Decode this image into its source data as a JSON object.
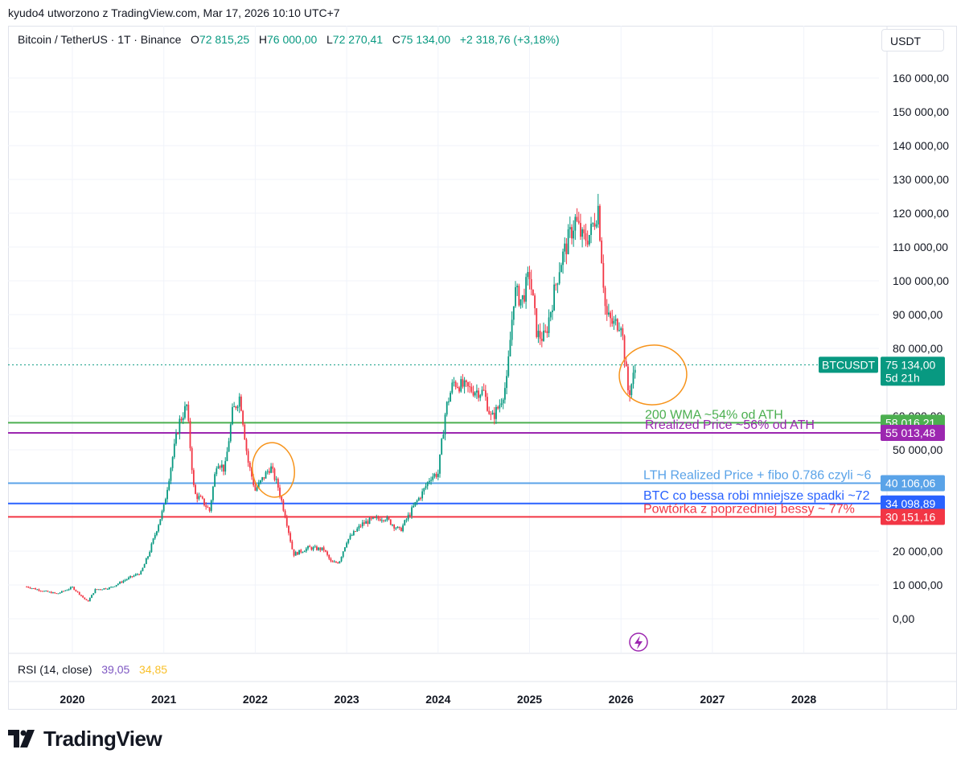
{
  "header": {
    "text": "kyudo4 utworzono z TradingView.com, Mar 17, 2026 10:10 UTC+7"
  },
  "symbol": {
    "name": "Bitcoin / TetherUS · 1T · Binance",
    "o_label": "O",
    "o_value": "72 815,25",
    "h_label": "H",
    "h_value": "76 000,00",
    "l_label": "L",
    "l_value": "72 270,41",
    "c_label": "C",
    "c_value": "75 134,00",
    "change": "+2 318,76 (+3,18%)"
  },
  "currency_button": "USDT",
  "rsi": {
    "label": "RSI (14, close)",
    "value1": "39,05",
    "value2": "34,85"
  },
  "footer": {
    "brand": "TradingView"
  },
  "colors": {
    "up": "#089981",
    "down": "#f23645",
    "annotation": "#f7931a"
  },
  "chart_data": {
    "type": "candlestick",
    "symbol": "BTCUSDT",
    "interval": "1 week",
    "x_years": [
      "2020",
      "2021",
      "2022",
      "2023",
      "2024",
      "2025",
      "2026",
      "2027",
      "2028"
    ],
    "y_ticks": [
      {
        "value": 0,
        "label": "0,00"
      },
      {
        "value": 10000,
        "label": "10 000,00"
      },
      {
        "value": 20000,
        "label": "20 000,00"
      },
      {
        "value": 50000,
        "label": "50 000,00"
      },
      {
        "value": 60000,
        "label": "60 000,00"
      },
      {
        "value": 80000,
        "label": "80 000,00"
      },
      {
        "value": 90000,
        "label": "90 000,00"
      },
      {
        "value": 100000,
        "label": "100 000,00"
      },
      {
        "value": 110000,
        "label": "110 000,00"
      },
      {
        "value": 120000,
        "label": "120 000,00"
      },
      {
        "value": 130000,
        "label": "130 000,00"
      },
      {
        "value": 140000,
        "label": "140 000,00"
      },
      {
        "value": 150000,
        "label": "150 000,00"
      },
      {
        "value": 160000,
        "label": "160 000,00"
      }
    ],
    "ylim": [
      0,
      165000
    ],
    "price_series": [
      [
        "2019-07",
        9500
      ],
      [
        "2019-09",
        8300
      ],
      [
        "2019-11",
        7400
      ],
      [
        "2020-01",
        9300
      ],
      [
        "2020-03",
        5000
      ],
      [
        "2020-04",
        8600
      ],
      [
        "2020-06",
        9200
      ],
      [
        "2020-08",
        11600
      ],
      [
        "2020-10",
        13700
      ],
      [
        "2020-11",
        19000
      ],
      [
        "2021-01",
        33000
      ],
      [
        "2021-02",
        46000
      ],
      [
        "2021-03",
        58000
      ],
      [
        "2021-04",
        63000
      ],
      [
        "2021-05",
        37000
      ],
      [
        "2021-06",
        35000
      ],
      [
        "2021-07",
        32000
      ],
      [
        "2021-08",
        47000
      ],
      [
        "2021-09",
        44000
      ],
      [
        "2021-10",
        61000
      ],
      [
        "2021-11",
        66000
      ],
      [
        "2021-12",
        47000
      ],
      [
        "2022-01",
        38000
      ],
      [
        "2022-03",
        45000
      ],
      [
        "2022-04",
        39000
      ],
      [
        "2022-05",
        30000
      ],
      [
        "2022-06",
        19000
      ],
      [
        "2022-08",
        21000
      ],
      [
        "2022-10",
        20500
      ],
      [
        "2022-11",
        16500
      ],
      [
        "2022-12",
        16800
      ],
      [
        "2023-01",
        23000
      ],
      [
        "2023-03",
        28000
      ],
      [
        "2023-04",
        29000
      ],
      [
        "2023-06",
        30000
      ],
      [
        "2023-08",
        26000
      ],
      [
        "2023-10",
        34000
      ],
      [
        "2023-11",
        37500
      ],
      [
        "2023-12",
        42000
      ],
      [
        "2024-01",
        43000
      ],
      [
        "2024-02",
        62000
      ],
      [
        "2024-03",
        70000
      ],
      [
        "2024-05",
        68000
      ],
      [
        "2024-07",
        67000
      ],
      [
        "2024-08",
        59000
      ],
      [
        "2024-09",
        63000
      ],
      [
        "2024-10",
        70000
      ],
      [
        "2024-11",
        97000
      ],
      [
        "2024-12",
        94000
      ],
      [
        "2025-01",
        102000
      ],
      [
        "2025-02",
        84000
      ],
      [
        "2025-03",
        83000
      ],
      [
        "2025-04",
        94000
      ],
      [
        "2025-05",
        105000
      ],
      [
        "2025-07",
        118000
      ],
      [
        "2025-08",
        112000
      ],
      [
        "2025-09",
        114000
      ],
      [
        "2025-10",
        122000
      ],
      [
        "2025-11",
        90000
      ],
      [
        "2025-12",
        87000
      ],
      [
        "2026-01",
        88000
      ],
      [
        "2026-02",
        66000
      ],
      [
        "2026-03",
        75134
      ]
    ],
    "current_price": {
      "label": "BTCUSDT",
      "value": 75134,
      "value_label": "75 134,00",
      "countdown": "5d 21h",
      "color": "#089981"
    },
    "horizontal_lines": [
      {
        "value": 58016.21,
        "value_label": "58 016,21",
        "text": "200 WMA ~54% od ATH",
        "color": "#4caf50"
      },
      {
        "value": 55013.48,
        "value_label": "55 013,48",
        "text": "Rrealized Price ~56% od ATH",
        "color": "#9c27b0"
      },
      {
        "value": 40106.06,
        "value_label": "40 106,06",
        "text": "LTH Realized Price + fibo 0.786 czyli ~6",
        "color": "#5aa3e8"
      },
      {
        "value": 34098.89,
        "value_label": "34 098,89",
        "text": "BTC co bessa robi mniejsze spadki ~72",
        "color": "#2962ff"
      },
      {
        "value": 30151.16,
        "value_label": "30 151,16",
        "text": "Powtórka z poprzedniej bessy ~ 77%",
        "color": "#f23645"
      }
    ]
  }
}
